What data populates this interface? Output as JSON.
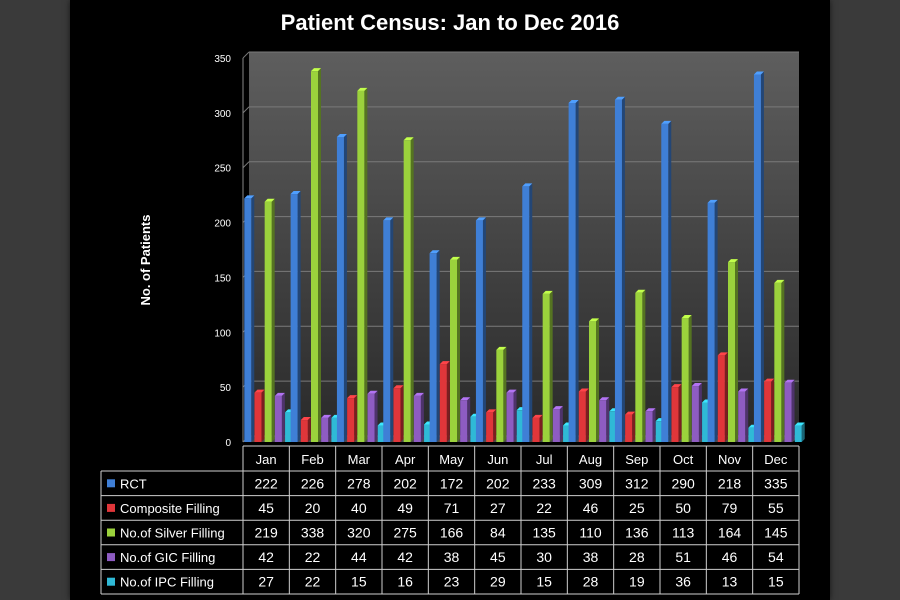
{
  "chart_data": {
    "type": "bar",
    "title": "Patient Census: Jan to Dec 2016",
    "ylabel": "No. of Patients",
    "xlabel": "",
    "ylim": [
      0,
      350
    ],
    "yticks": [
      0,
      50,
      100,
      150,
      200,
      250,
      300,
      350
    ],
    "grid": true,
    "legend": "data-table",
    "categories": [
      "Jan",
      "Feb",
      "Mar",
      "Apr",
      "May",
      "Jun",
      "Jul",
      "Aug",
      "Sep",
      "Oct",
      "Nov",
      "Dec"
    ],
    "series": [
      {
        "name": "RCT",
        "color": "#3f7fd6",
        "values": [
          222,
          226,
          278,
          202,
          172,
          202,
          233,
          309,
          312,
          290,
          218,
          335
        ]
      },
      {
        "name": "Composite Filling",
        "color": "#e0363a",
        "values": [
          45,
          20,
          40,
          49,
          71,
          27,
          22,
          46,
          25,
          50,
          79,
          55
        ]
      },
      {
        "name": "No.of Silver Filling",
        "color": "#9bd23c",
        "values": [
          219,
          338,
          320,
          275,
          166,
          84,
          135,
          110,
          136,
          113,
          164,
          145
        ]
      },
      {
        "name": "No.of GIC Filling",
        "color": "#8e5cc2",
        "values": [
          42,
          22,
          44,
          42,
          38,
          45,
          30,
          38,
          28,
          51,
          46,
          54
        ]
      },
      {
        "name": "No.of IPC Filling",
        "color": "#2fb9d6",
        "values": [
          27,
          22,
          15,
          16,
          23,
          29,
          15,
          28,
          19,
          36,
          13,
          15
        ]
      }
    ]
  }
}
